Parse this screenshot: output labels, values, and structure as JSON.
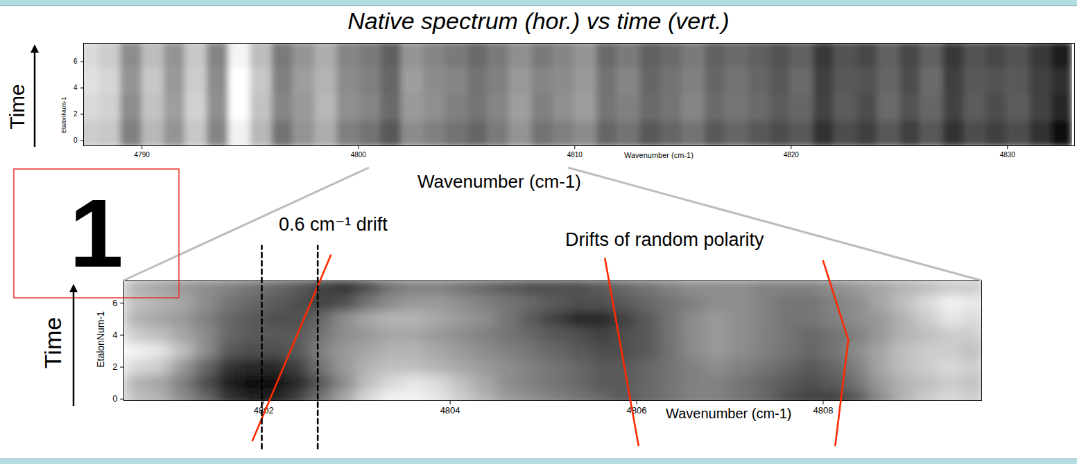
{
  "title": "Native spectrum (hor.) vs time (vert.)",
  "panel_label": "1",
  "chart_data": [
    {
      "type": "heatmap",
      "x_label": "Wavenumber (cm-1)",
      "x_title": "Wavenumber (cm-1)",
      "y_label": "EtalonNum-1",
      "y_title": "Time",
      "xlim": [
        4787.3,
        4833.1
      ],
      "xticks": [
        4790,
        4800,
        4810,
        4820,
        4830
      ],
      "ylim": [
        -0.4,
        7.4
      ],
      "yticks": [
        0,
        2,
        4,
        6
      ],
      "zlim": [
        0,
        100
      ],
      "x": [
        4787.5,
        4788.5,
        4789.5,
        4790.5,
        4791.5,
        4792.5,
        4793.5,
        4794.5,
        4795.5,
        4796.5,
        4797.5,
        4798.5,
        4799.5,
        4800.5,
        4801.5,
        4802.5,
        4803.5,
        4804.5,
        4805.5,
        4806.5,
        4807.5,
        4808.5,
        4809.5,
        4810.5,
        4811.5,
        4812.5,
        4813.5,
        4814.5,
        4815.5,
        4816.5,
        4817.5,
        4818.5,
        4819.5,
        4820.5,
        4821.5,
        4822.5,
        4823.5,
        4824.5,
        4825.5,
        4826.5,
        4827.5,
        4828.5,
        4829.5,
        4830.5,
        4831.5,
        4832.5
      ],
      "y": [
        0.5,
        2.5,
        4.5,
        6.5
      ],
      "z": [
        [
          80,
          78,
          50,
          72,
          58,
          78,
          52,
          95,
          72,
          45,
          58,
          68,
          50,
          45,
          35,
          55,
          50,
          45,
          40,
          48,
          58,
          45,
          50,
          55,
          40,
          45,
          35,
          40,
          45,
          35,
          40,
          35,
          30,
          35,
          20,
          30,
          25,
          35,
          25,
          35,
          20,
          30,
          25,
          30,
          20,
          5
        ],
        [
          85,
          82,
          55,
          76,
          62,
          82,
          56,
          100,
          76,
          52,
          60,
          72,
          56,
          52,
          42,
          60,
          56,
          50,
          46,
          52,
          62,
          50,
          56,
          62,
          46,
          50,
          42,
          46,
          52,
          42,
          46,
          42,
          36,
          40,
          26,
          36,
          30,
          42,
          32,
          40,
          26,
          36,
          30,
          36,
          26,
          15
        ],
        [
          88,
          84,
          58,
          78,
          60,
          80,
          55,
          100,
          78,
          50,
          62,
          70,
          55,
          50,
          40,
          62,
          55,
          52,
          45,
          50,
          60,
          52,
          55,
          60,
          45,
          52,
          40,
          45,
          50,
          40,
          45,
          40,
          35,
          42,
          25,
          35,
          32,
          40,
          30,
          42,
          25,
          35,
          32,
          35,
          25,
          18
        ],
        [
          86,
          80,
          55,
          74,
          58,
          78,
          52,
          96,
          74,
          48,
          58,
          68,
          52,
          48,
          38,
          58,
          52,
          48,
          42,
          48,
          56,
          48,
          52,
          58,
          42,
          48,
          38,
          42,
          48,
          38,
          42,
          38,
          32,
          38,
          22,
          32,
          28,
          38,
          28,
          38,
          22,
          32,
          28,
          32,
          22,
          12
        ]
      ]
    },
    {
      "type": "heatmap",
      "x_label": "Wavenumber (cm-1)",
      "y_label": "EtalonNum-1",
      "y_title": "Time",
      "xlim": [
        4800.5,
        4809.7
      ],
      "xticks": [
        4802,
        4804,
        4806,
        4808
      ],
      "ylim": [
        -0.1,
        7.4
      ],
      "yticks": [
        0,
        2,
        4,
        6
      ],
      "zlim": [
        0,
        100
      ],
      "x": [
        4800.625,
        4800.875,
        4801.125,
        4801.375,
        4801.625,
        4801.875,
        4802.125,
        4802.375,
        4802.625,
        4802.875,
        4803.125,
        4803.375,
        4803.625,
        4803.875,
        4804.125,
        4804.375,
        4804.625,
        4804.875,
        4805.125,
        4805.375,
        4805.625,
        4805.875,
        4806.125,
        4806.375,
        4806.625,
        4806.875,
        4807.125,
        4807.375,
        4807.625,
        4807.875,
        4808.125,
        4808.375,
        4808.625,
        4808.875,
        4809.125,
        4809.375,
        4809.625
      ],
      "y": [
        0,
        1,
        2,
        3,
        4,
        5,
        6,
        7
      ],
      "z": [
        [
          75,
          70,
          55,
          40,
          20,
          10,
          10,
          25,
          45,
          65,
          85,
          95,
          95,
          90,
          80,
          70,
          60,
          55,
          50,
          45,
          40,
          35,
          40,
          45,
          50,
          50,
          45,
          40,
          30,
          25,
          25,
          35,
          55,
          70,
          80,
          85,
          80
        ],
        [
          70,
          65,
          50,
          30,
          10,
          5,
          5,
          15,
          35,
          55,
          75,
          85,
          90,
          85,
          75,
          65,
          55,
          50,
          45,
          40,
          35,
          35,
          40,
          45,
          50,
          50,
          45,
          40,
          35,
          30,
          35,
          45,
          60,
          70,
          75,
          80,
          75
        ],
        [
          85,
          80,
          60,
          40,
          20,
          15,
          15,
          25,
          45,
          60,
          70,
          75,
          75,
          70,
          65,
          60,
          55,
          50,
          45,
          40,
          35,
          35,
          40,
          45,
          50,
          55,
          50,
          45,
          40,
          35,
          40,
          50,
          65,
          75,
          80,
          85,
          80
        ],
        [
          95,
          90,
          75,
          55,
          35,
          30,
          30,
          35,
          50,
          60,
          65,
          70,
          70,
          65,
          60,
          55,
          50,
          45,
          40,
          35,
          30,
          30,
          35,
          45,
          55,
          60,
          55,
          50,
          45,
          40,
          45,
          55,
          65,
          75,
          80,
          80,
          75
        ],
        [
          80,
          75,
          65,
          55,
          40,
          35,
          35,
          35,
          45,
          55,
          60,
          65,
          65,
          60,
          55,
          50,
          45,
          40,
          35,
          30,
          25,
          30,
          35,
          45,
          55,
          60,
          55,
          50,
          45,
          40,
          45,
          50,
          60,
          70,
          75,
          80,
          80
        ],
        [
          70,
          65,
          60,
          50,
          40,
          35,
          30,
          30,
          40,
          55,
          65,
          70,
          70,
          65,
          60,
          55,
          45,
          35,
          25,
          15,
          15,
          25,
          35,
          45,
          55,
          60,
          55,
          50,
          45,
          45,
          50,
          55,
          60,
          70,
          80,
          90,
          85
        ],
        [
          75,
          70,
          65,
          55,
          45,
          40,
          35,
          30,
          25,
          30,
          45,
          55,
          60,
          60,
          55,
          50,
          45,
          40,
          35,
          30,
          30,
          35,
          40,
          45,
          50,
          55,
          55,
          50,
          45,
          45,
          50,
          55,
          65,
          75,
          85,
          95,
          90
        ],
        [
          70,
          65,
          60,
          55,
          50,
          45,
          40,
          35,
          25,
          20,
          30,
          45,
          50,
          50,
          45,
          40,
          35,
          30,
          30,
          30,
          35,
          40,
          45,
          50,
          55,
          55,
          55,
          50,
          50,
          50,
          55,
          60,
          65,
          70,
          75,
          80,
          80
        ]
      ],
      "lines": [
        {
          "color": "#ff2a00",
          "line_style": "solid",
          "x": [
            4801.88,
            4802.72
          ],
          "y": [
            -2.6,
            9.0
          ]
        },
        {
          "color": "#ff2a00",
          "line_style": "solid",
          "x": [
            4805.66,
            4806.02
          ],
          "y": [
            8.8,
            -2.9
          ]
        },
        {
          "color": "#ff2a00",
          "line_style": "solid",
          "x": [
            4808.0,
            4808.27,
            4808.13
          ],
          "y": [
            8.65,
            3.7,
            -2.9
          ]
        },
        {
          "color": "#000000",
          "line_style": "dashed",
          "x": [
            4801.98,
            4801.98
          ],
          "y": [
            -3.1,
            9.6
          ]
        },
        {
          "color": "#000000",
          "line_style": "dashed",
          "x": [
            4802.58,
            4802.58
          ],
          "y": [
            -3.1,
            9.6
          ]
        }
      ],
      "annotations": [
        "0.6 cm⁻¹ drift",
        "Drifts of random polarity"
      ]
    }
  ]
}
